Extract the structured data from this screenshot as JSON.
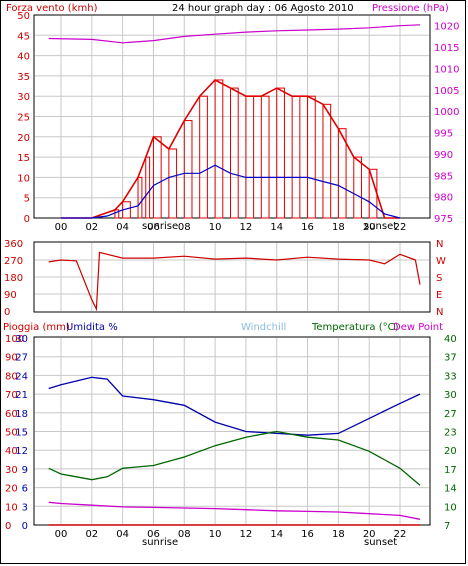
{
  "title": "24 hour graph day : 06 Agosto 2010",
  "colors": {
    "wind": "#e00000",
    "gust_fill": "#e00000",
    "wind_avg": "#0000cc",
    "pressure": "#cc00cc",
    "direction": "#cc0000",
    "rain": "#cc0000",
    "humidity": "#0000aa",
    "windchill": "#88bbdd",
    "temperature": "#006600",
    "dewpoint": "#cc00cc",
    "grid": "#c8c8c8"
  },
  "labels": {
    "wind_axis": "Forza vento (kmh)",
    "pressure_axis": "Pressione (hPa)",
    "rain_axis": "Pioggia (mm)",
    "humidity_axis": "Umidita %",
    "windchill": "Windchill",
    "temperature_axis": "Temperatura (°C)",
    "dewpoint": "Dew Point",
    "sunrise": "sunrise",
    "sunset": "sunset"
  },
  "chart_data": [
    {
      "type": "line",
      "name": "wind",
      "x_ticks": [
        "00",
        "02",
        "04",
        "06",
        "08",
        "10",
        "12",
        "14",
        "16",
        "18",
        "20",
        "22"
      ],
      "ylim": [
        0,
        50
      ],
      "y_ticks": [
        0,
        5,
        10,
        15,
        20,
        25,
        30,
        35,
        40,
        45,
        50
      ],
      "y2lim": [
        975,
        1020
      ],
      "y2_ticks": [
        975,
        980,
        985,
        990,
        995,
        1000,
        1005,
        1010,
        1015,
        1020
      ],
      "series": [
        {
          "name": "Forza vento (kmh)",
          "x": [
            0,
            2,
            3.5,
            4,
            5,
            5.5,
            6,
            7,
            8,
            9,
            10,
            11,
            12,
            13,
            14,
            15,
            16,
            17,
            18,
            19,
            20,
            21,
            22
          ],
          "values": [
            0,
            0,
            2,
            4,
            10,
            15,
            20,
            17,
            24,
            30,
            34,
            32,
            30,
            30,
            32,
            30,
            30,
            28,
            22,
            15,
            12,
            0,
            0
          ]
        },
        {
          "name": "avg",
          "x": [
            0,
            2,
            3,
            4,
            5,
            6,
            7,
            8,
            9,
            10,
            11,
            12,
            13,
            14,
            15,
            16,
            17,
            18,
            19,
            20,
            21,
            22
          ],
          "values": [
            0,
            0,
            0.5,
            2,
            3,
            8,
            10,
            11,
            11,
            13,
            11,
            10,
            10,
            10,
            10,
            10,
            9,
            8,
            6,
            4,
            1,
            0
          ]
        },
        {
          "name": "Pressione (hPa)",
          "x": [
            -0.8,
            2,
            4,
            6,
            8,
            10,
            12,
            14,
            16,
            18,
            20,
            22,
            23.3
          ],
          "values": [
            1017,
            1016.8,
            1016,
            1016.5,
            1017.5,
            1018,
            1018.5,
            1018.8,
            1019,
            1019.2,
            1019.5,
            1020,
            1020.2
          ]
        }
      ]
    },
    {
      "type": "line",
      "name": "direction",
      "ylim": [
        0,
        360
      ],
      "y_ticks": [
        0,
        90,
        180,
        270,
        360
      ],
      "y2_labels": [
        "N",
        "W",
        "S",
        "E",
        "N"
      ],
      "series": [
        {
          "name": "direction",
          "x": [
            -0.8,
            0,
            1,
            2,
            2.3,
            2.5,
            4,
            6,
            8,
            10,
            12,
            14,
            16,
            18,
            20,
            21,
            22,
            23,
            23.3
          ],
          "values": [
            260,
            270,
            265,
            60,
            10,
            310,
            280,
            280,
            290,
            275,
            280,
            270,
            285,
            275,
            270,
            250,
            300,
            270,
            140
          ]
        }
      ]
    },
    {
      "type": "line",
      "name": "temp_hum",
      "rain_ticks": [
        0,
        10,
        20,
        30,
        40,
        50,
        60,
        70,
        80,
        90,
        100
      ],
      "hum_ticks": [
        0,
        3,
        6,
        9,
        12,
        15,
        18,
        21,
        24,
        27,
        30
      ],
      "temp_ticks": [
        7,
        10,
        14,
        17,
        20,
        23,
        27,
        30,
        33,
        37,
        40
      ],
      "ylim": [
        0,
        100
      ],
      "series": [
        {
          "name": "Umidita %",
          "x": [
            -0.8,
            0,
            1,
            2,
            3,
            4,
            6,
            8,
            10,
            12,
            14,
            16,
            18,
            20,
            22,
            23.3
          ],
          "values": [
            73,
            75,
            77,
            79,
            78,
            69,
            67,
            64,
            55,
            50,
            49,
            48,
            49,
            57,
            65,
            70
          ]
        },
        {
          "name": "Temperatura (°C)",
          "x": [
            -0.8,
            0,
            1,
            2,
            3,
            4,
            6,
            8,
            10,
            12,
            14,
            16,
            18,
            20,
            22,
            23.3
          ],
          "values": [
            17,
            16,
            15.5,
            15,
            15.5,
            17,
            17.5,
            19,
            21,
            22.5,
            23.5,
            22.5,
            22,
            20,
            17,
            14
          ]
        },
        {
          "name": "Dew Point",
          "x": [
            -0.8,
            0,
            2,
            4,
            6,
            8,
            10,
            12,
            14,
            16,
            18,
            20,
            22,
            23.3
          ],
          "values": [
            11,
            10.8,
            10.5,
            10.2,
            10.1,
            10,
            9.9,
            9.7,
            9.5,
            9.4,
            9.3,
            9,
            8.7,
            8
          ]
        },
        {
          "name": "Pioggia (mm)",
          "x": [
            -0.8,
            23.3
          ],
          "values": [
            0,
            0
          ]
        }
      ]
    }
  ]
}
